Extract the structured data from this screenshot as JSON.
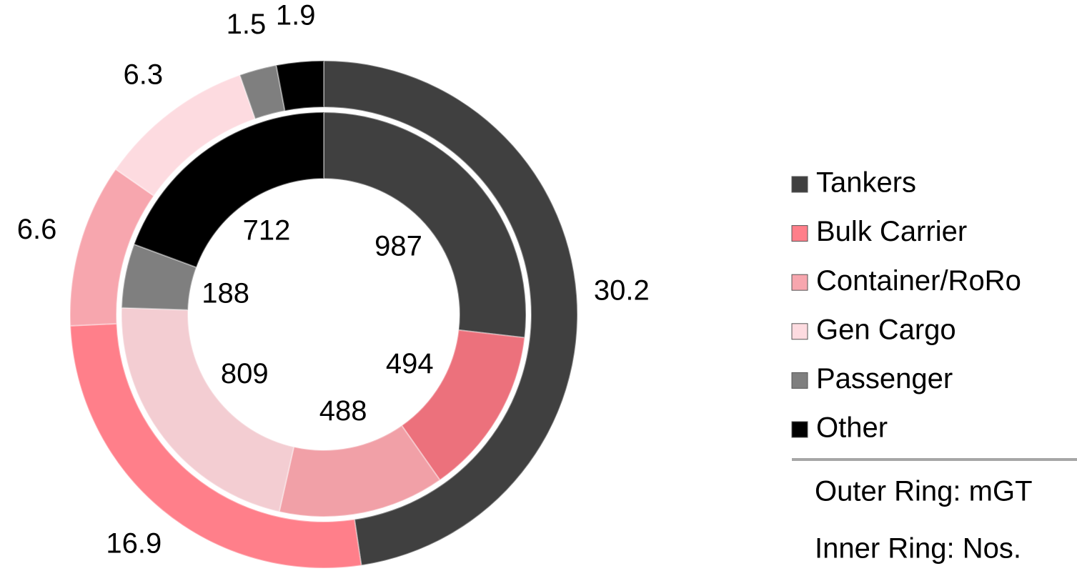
{
  "chart_data": {
    "type": "doughnut",
    "categories": [
      "Tankers",
      "Bulk Carrier",
      "Container/RoRo",
      "Gen Cargo",
      "Passenger",
      "Other"
    ],
    "series": [
      {
        "name": "Outer Ring: mGT",
        "values": [
          30.2,
          16.9,
          6.6,
          6.3,
          1.5,
          1.9
        ],
        "colors": [
          "#404040",
          "#ff7f8a",
          "#f7a6ae",
          "#fddbe0",
          "#7f7f7f",
          "#000000"
        ]
      },
      {
        "name": "Inner Ring: Nos.",
        "values": [
          987,
          494,
          488,
          809,
          188,
          712
        ],
        "colors": [
          "#404040",
          "#ec717c",
          "#f1a0a7",
          "#f3cdd2",
          "#7f7f7f",
          "#000000"
        ]
      }
    ],
    "legend": "right"
  }
}
